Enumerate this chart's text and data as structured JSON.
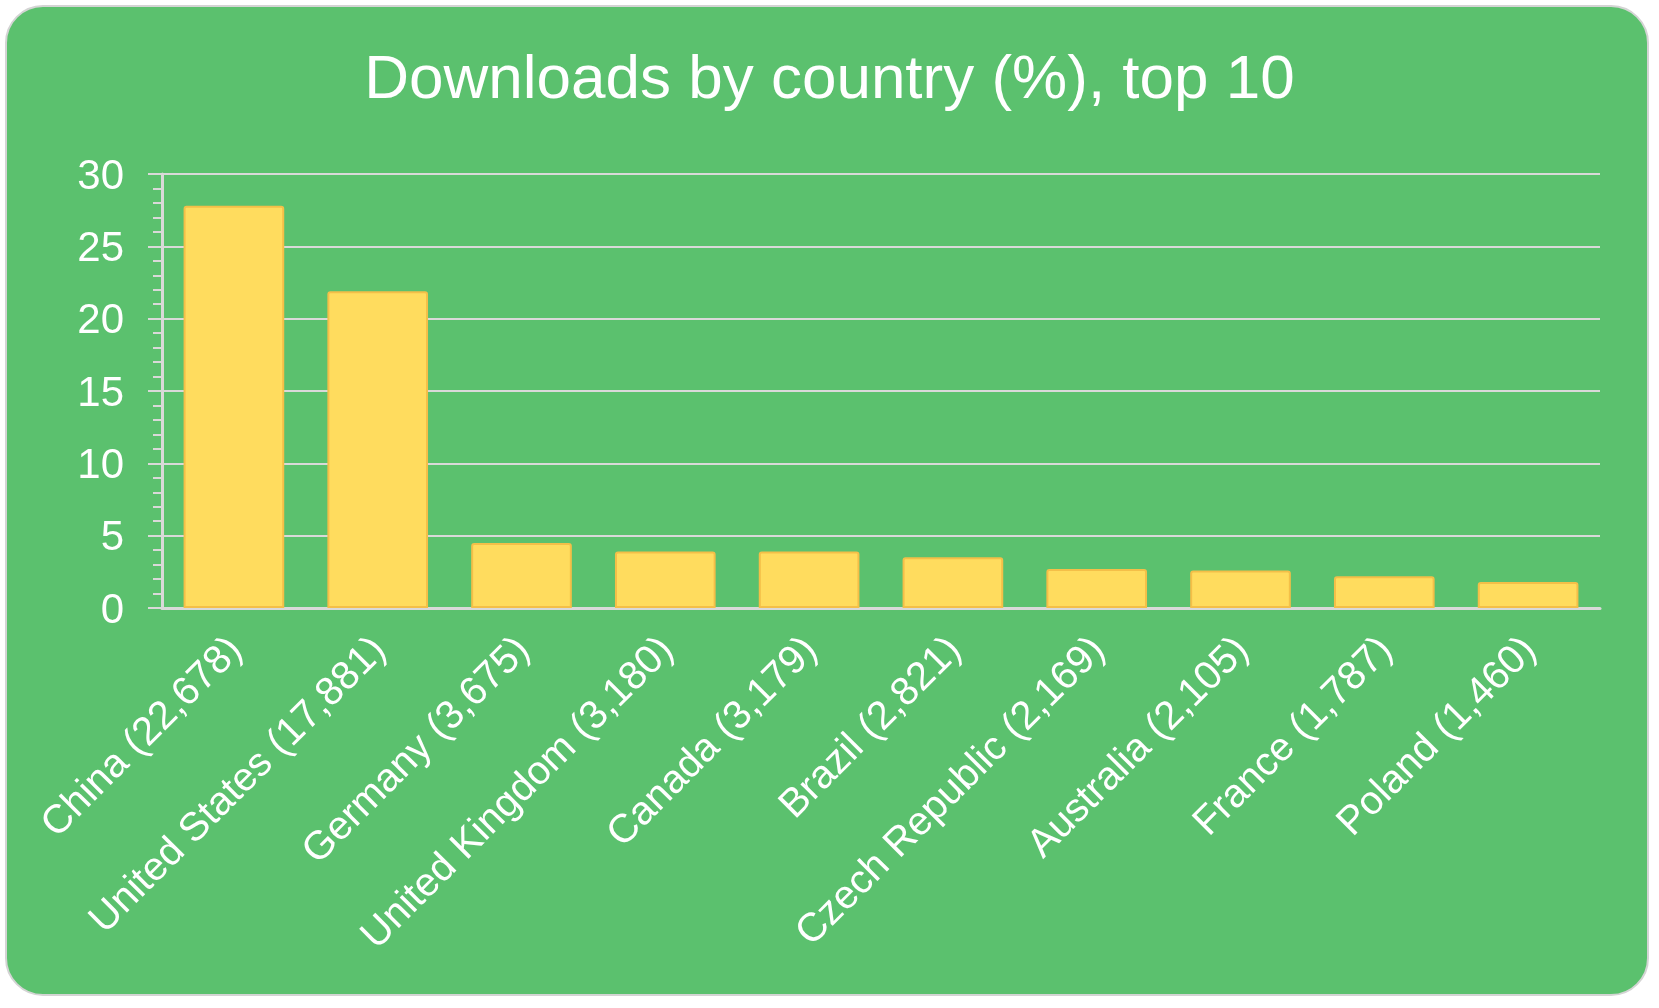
{
  "chart_data": {
    "type": "bar",
    "title": "Downloads by country (%), top 10",
    "categories": [
      "China (22,678)",
      "United States (17,881)",
      "Germany (3,675)",
      "United Kingdom (3,180)",
      "Canada (3,179)",
      "Brazil (2,821)",
      "Czech Republic (2,169)",
      "Australia (2,105)",
      "France (1,787)",
      "Poland (1,460)"
    ],
    "values": [
      27.8,
      21.9,
      4.5,
      3.9,
      3.9,
      3.5,
      2.7,
      2.6,
      2.2,
      1.8
    ],
    "color": "#ffdc5e",
    "ylim": [
      0,
      30
    ],
    "yticks": [
      0,
      5,
      10,
      15,
      20,
      25,
      30
    ],
    "grid": "y"
  }
}
